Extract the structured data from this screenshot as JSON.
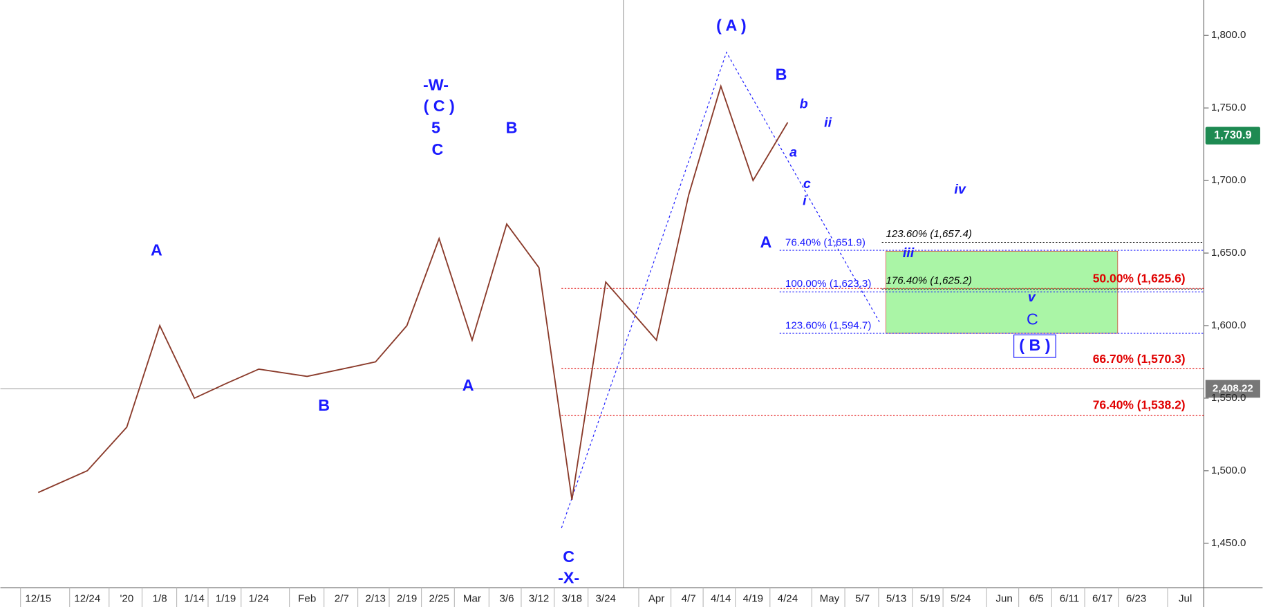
{
  "chart_data": {
    "type": "line",
    "categories": [
      "12/15",
      "12/24",
      "'20",
      "1/8",
      "1/14",
      "1/19",
      "1/24",
      "Feb",
      "2/7",
      "2/13",
      "2/19",
      "2/25",
      "Mar",
      "3/6",
      "3/12",
      "3/18",
      "3/24",
      "Apr",
      "4/7",
      "4/14",
      "4/19",
      "4/24",
      "May",
      "5/7",
      "5/13",
      "5/19",
      "5/24",
      "Jun",
      "6/5",
      "6/11",
      "6/17",
      "6/23",
      "Jul"
    ],
    "series": [
      {
        "color": "#8a3a2a",
        "values": [
          1485,
          1500,
          1530,
          1600,
          1550,
          1560,
          1570,
          1565,
          1570,
          1575,
          1600,
          1660,
          1590,
          1670,
          1640,
          1480,
          1630,
          1590,
          1690,
          1765,
          1700,
          1740,
          null,
          null,
          null,
          null,
          null,
          null,
          null,
          null,
          null,
          null,
          null
        ]
      }
    ],
    "ylim": [
      1419.4,
      1824.4
    ],
    "yticks": [
      {
        "value": 1450,
        "label": "1,450.0"
      },
      {
        "value": 1500,
        "label": "1,500.0"
      },
      {
        "value": 1550,
        "label": "1,550.0"
      },
      {
        "value": 1600,
        "label": "1,600.0"
      },
      {
        "value": 1650,
        "label": "1,650.0"
      },
      {
        "value": 1700,
        "label": "1,700.0"
      },
      {
        "value": 1750,
        "label": "1,750.0"
      },
      {
        "value": 1800,
        "label": "1,800.0"
      }
    ],
    "last_price": {
      "value": 1730.9,
      "label": "1,730.9"
    },
    "crosshair_label": "2,408.22",
    "fib_levels": [
      {
        "label": "123.60% (1,657.4)",
        "value": 1657.4,
        "color": "#000000"
      },
      {
        "label": "76.40% (1,651.9)",
        "value": 1651.9,
        "color": "#1a1aff"
      },
      {
        "label": "176.40% (1,625.2)",
        "value": 1625.2,
        "color": "#000000"
      },
      {
        "label": "100.00% (1,623.3)",
        "value": 1623.3,
        "color": "#1a1aff"
      },
      {
        "label": "123.60% (1,594.7)",
        "value": 1594.7,
        "color": "#1a1aff"
      },
      {
        "label": "50.00% (1,625.6)",
        "value": 1625.6,
        "color": "#e00000"
      },
      {
        "label": "66.70% (1,570.3)",
        "value": 1570.3,
        "color": "#e00000"
      },
      {
        "label": "76.40% (1,538.2)",
        "value": 1538.2,
        "color": "#e00000"
      }
    ],
    "annotations": [
      "A",
      "B",
      "A",
      "-W-",
      "( C )",
      "5",
      "C",
      "B",
      "C",
      "-X-",
      "( A )",
      "B",
      "A",
      "b",
      "ii",
      "a",
      "c",
      "i",
      "iv",
      "iii",
      "v",
      "C",
      "( B )"
    ]
  }
}
